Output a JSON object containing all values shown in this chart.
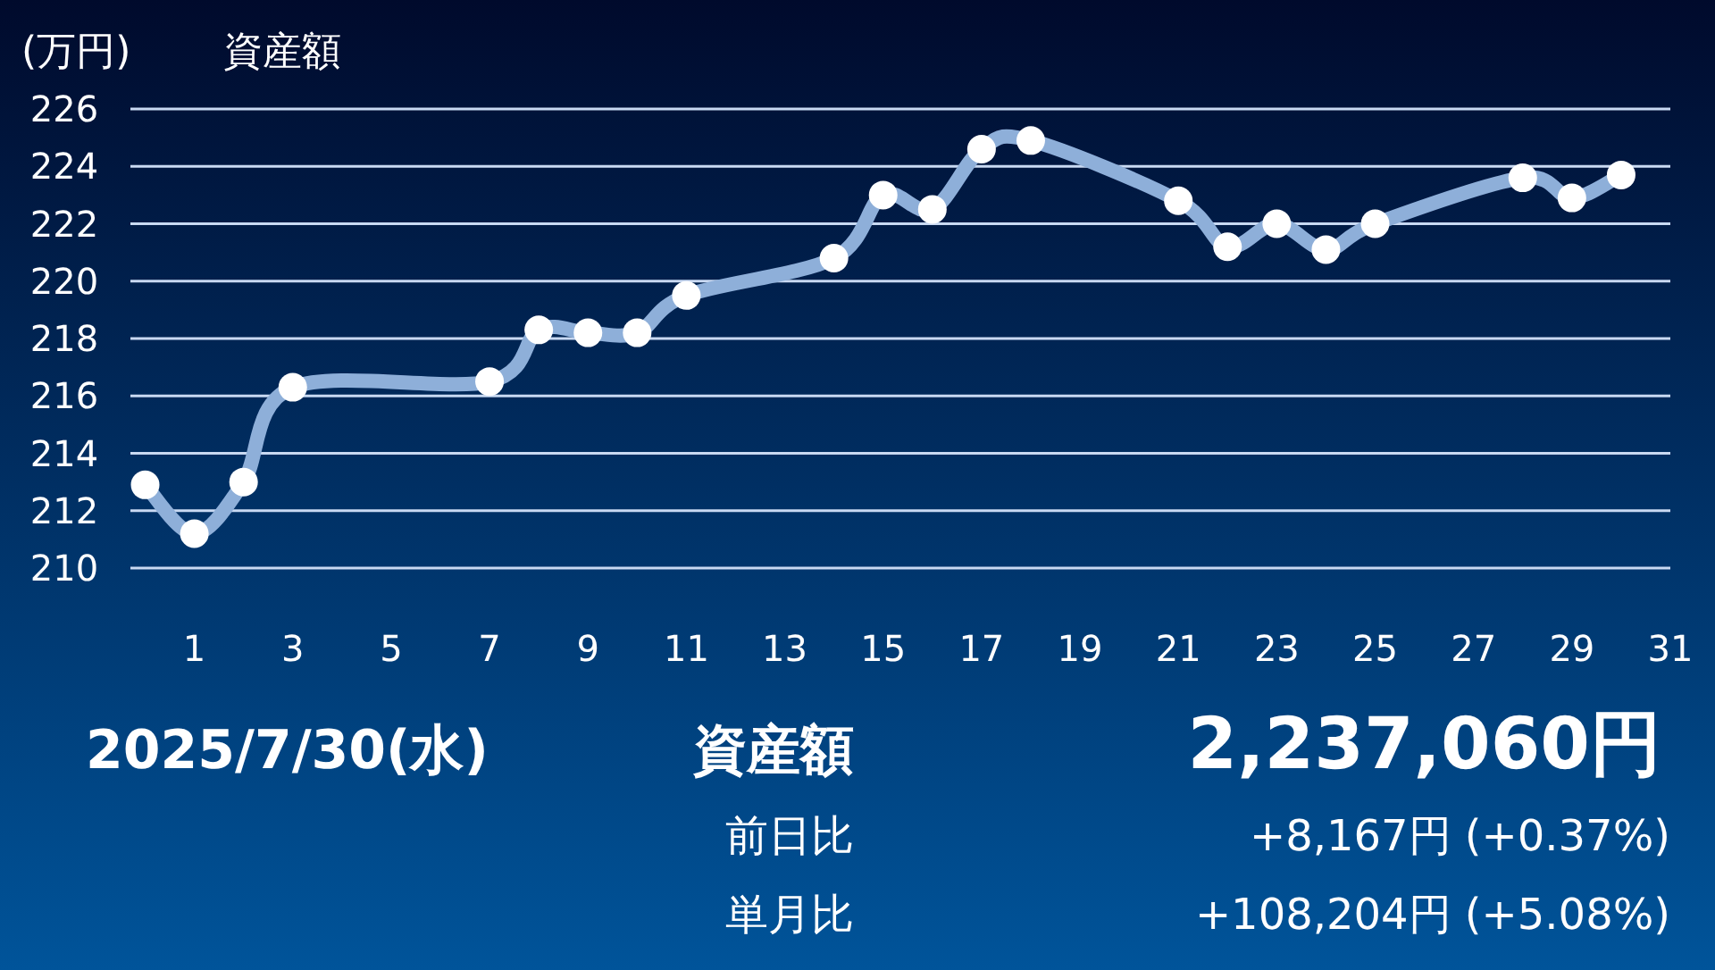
{
  "chart_data": {
    "type": "line",
    "title": "資産額",
    "ylabel": "(万円)",
    "x": [
      0,
      1,
      2,
      3,
      7,
      8,
      9,
      10,
      11,
      14,
      15,
      16,
      17,
      18,
      21,
      22,
      23,
      24,
      25,
      28,
      29,
      30
    ],
    "series": [
      {
        "color": "#8eafd9",
        "values": [
          212.9,
          211.2,
          213.0,
          216.3,
          216.5,
          218.3,
          218.2,
          218.2,
          219.5,
          220.8,
          223.0,
          222.5,
          224.6,
          224.9,
          222.8,
          221.2,
          222.0,
          221.1,
          222.0,
          223.6,
          222.9,
          223.7
        ]
      }
    ],
    "xlim": [
      -0.3,
      31
    ],
    "xticks": [
      1,
      3,
      5,
      7,
      9,
      11,
      13,
      15,
      17,
      19,
      21,
      23,
      25,
      27,
      29,
      31
    ],
    "ylim": [
      210,
      226
    ],
    "yticks": [
      210,
      212,
      214,
      216,
      218,
      220,
      222,
      224,
      226
    ],
    "grid": "y",
    "marker": "circle",
    "line_style": "solid",
    "annotations": [
      "2025/7/30(水)",
      "資産額",
      "2,237,060円",
      "前日比",
      "+8,167円 (+0.37%)",
      "単月比",
      "+108,204円 (+5.08%)"
    ]
  }
}
